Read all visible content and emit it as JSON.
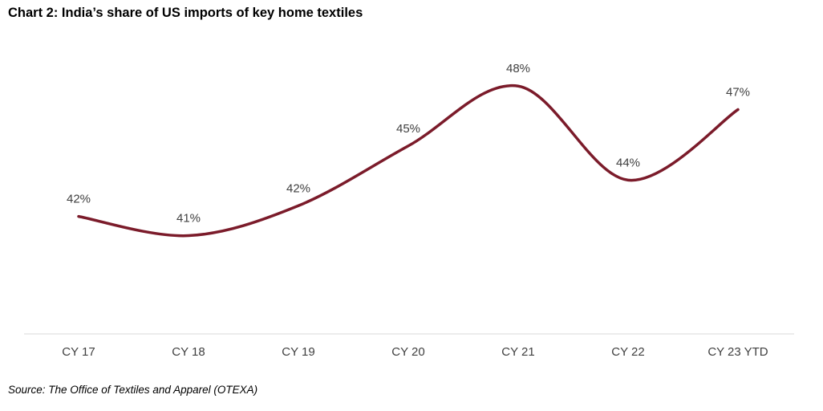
{
  "chart_data": {
    "type": "line",
    "title": "Chart 2: India’s share of US imports of key home textiles",
    "categories": [
      "CY 17",
      "CY 18",
      "CY 19",
      "CY 20",
      "CY 21",
      "CY 22",
      "CY 23 YTD"
    ],
    "values": [
      41.9,
      41.0,
      42.4,
      45.2,
      48.0,
      43.6,
      46.9
    ],
    "data_labels": [
      "42%",
      "41%",
      "42%",
      "45%",
      "48%",
      "44%",
      "47%"
    ],
    "unit": "%",
    "ylim": [
      36.4,
      50
    ],
    "smoothed": true,
    "grid": false,
    "legend": "none",
    "line_color": "#7B1B2A",
    "source": "Source: The Office of Textiles and Apparel (OTEXA)"
  }
}
